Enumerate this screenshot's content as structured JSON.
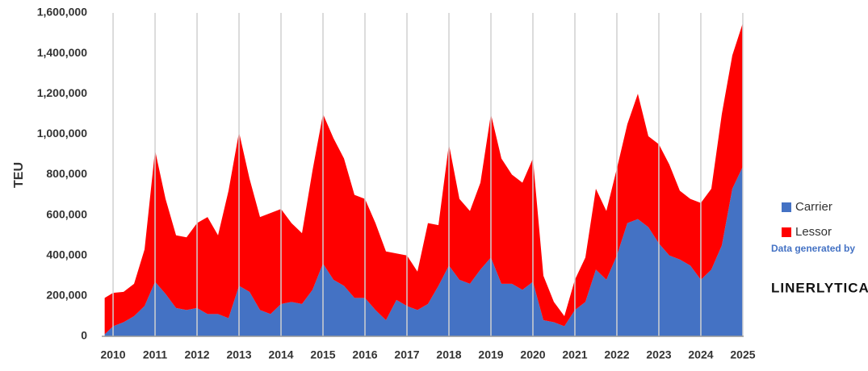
{
  "chart_data": {
    "type": "stacked_area",
    "y_label": "TEU",
    "x": [
      2009.8,
      2010,
      2010.25,
      2010.5,
      2010.75,
      2011,
      2011.25,
      2011.5,
      2011.75,
      2012,
      2012.25,
      2012.5,
      2012.75,
      2013,
      2013.25,
      2013.5,
      2013.75,
      2014,
      2014.25,
      2014.5,
      2014.75,
      2015,
      2015.25,
      2015.5,
      2015.75,
      2016,
      2016.25,
      2016.5,
      2016.75,
      2017,
      2017.25,
      2017.5,
      2017.75,
      2018,
      2018.25,
      2018.5,
      2018.75,
      2019,
      2019.25,
      2019.5,
      2019.75,
      2020,
      2020.25,
      2020.5,
      2020.75,
      2021,
      2021.25,
      2021.5,
      2021.75,
      2022,
      2022.25,
      2022.5,
      2022.75,
      2023,
      2023.25,
      2023.5,
      2023.75,
      2024,
      2024.25,
      2024.5,
      2024.75,
      2025
    ],
    "series": [
      {
        "name": "Carrier",
        "color": "#4472c4",
        "values": [
          10000,
          50000,
          70000,
          100000,
          150000,
          270000,
          210000,
          140000,
          130000,
          140000,
          110000,
          110000,
          90000,
          250000,
          220000,
          130000,
          110000,
          160000,
          170000,
          160000,
          230000,
          360000,
          280000,
          250000,
          190000,
          190000,
          130000,
          80000,
          180000,
          150000,
          130000,
          160000,
          250000,
          350000,
          280000,
          260000,
          330000,
          390000,
          260000,
          260000,
          230000,
          270000,
          80000,
          70000,
          50000,
          130000,
          170000,
          330000,
          280000,
          400000,
          560000,
          580000,
          540000,
          460000,
          400000,
          380000,
          350000,
          280000,
          330000,
          450000,
          730000,
          840000
        ]
      },
      {
        "name": "Lessor",
        "color": "#ff0000",
        "values": [
          180000,
          165000,
          150000,
          160000,
          280000,
          650000,
          470000,
          360000,
          360000,
          420000,
          480000,
          390000,
          630000,
          760000,
          560000,
          460000,
          500000,
          470000,
          390000,
          350000,
          590000,
          740000,
          700000,
          630000,
          510000,
          490000,
          430000,
          340000,
          230000,
          250000,
          190000,
          400000,
          300000,
          600000,
          400000,
          360000,
          430000,
          710000,
          620000,
          540000,
          530000,
          610000,
          220000,
          100000,
          50000,
          150000,
          220000,
          400000,
          340000,
          430000,
          490000,
          620000,
          450000,
          490000,
          450000,
          340000,
          330000,
          380000,
          400000,
          650000,
          660000,
          710000
        ]
      }
    ],
    "xlim": [
      2009.73,
      2025.02
    ],
    "xticks": [
      2010,
      2011,
      2012,
      2013,
      2014,
      2015,
      2016,
      2017,
      2018,
      2019,
      2020,
      2021,
      2022,
      2023,
      2024,
      2025
    ],
    "ylim": [
      0,
      1600000
    ],
    "yticks": [
      0,
      {
        "value": 200000,
        "label": "200,000"
      },
      {
        "value": 400000,
        "label": "400,000"
      },
      {
        "value": 600000,
        "label": "600,000"
      },
      {
        "value": 800000,
        "label": "800,000"
      },
      {
        "value": 1000000,
        "label": "1,000,000"
      },
      {
        "value": 1200000,
        "label": "1,200,000"
      },
      {
        "value": 1400000,
        "label": "1,400,000"
      },
      {
        "value": 1600000,
        "label": "1,600,000"
      }
    ],
    "grid": "x",
    "legend": "right",
    "credit": {
      "line1": "Data generated by",
      "line2": "LINERLYTICA"
    }
  }
}
